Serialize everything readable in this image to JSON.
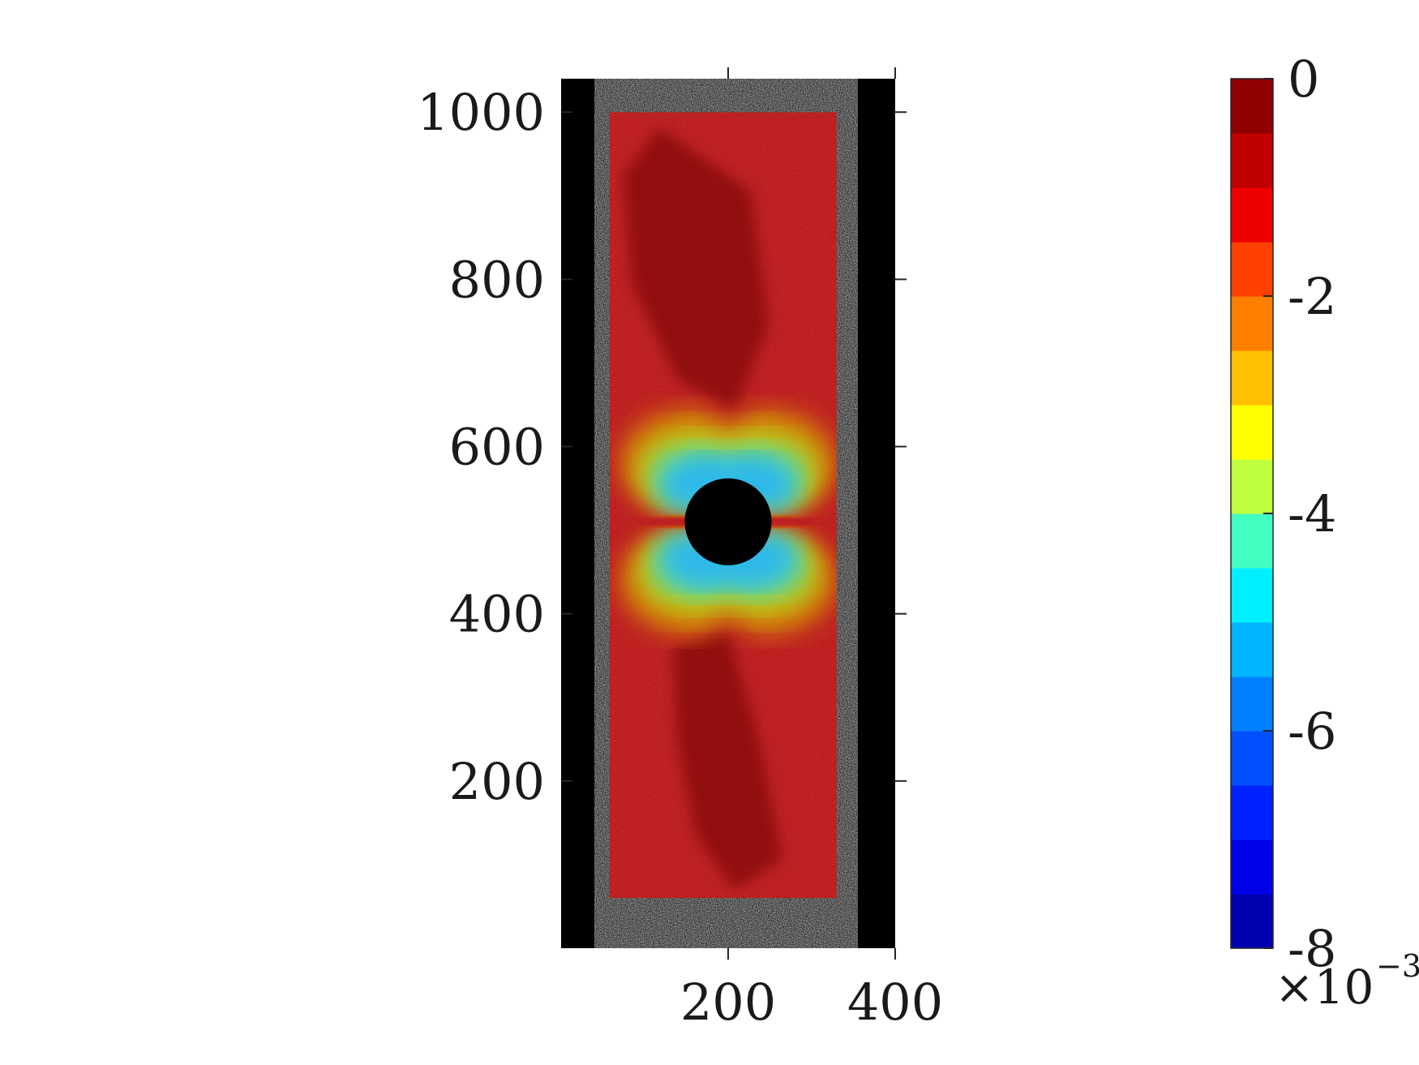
{
  "chart_data": {
    "type": "heatmap",
    "title": "",
    "xlabel": "",
    "ylabel": "",
    "xlim": [
      0,
      400
    ],
    "ylim": [
      0,
      1040
    ],
    "x_ticks": [
      200,
      400
    ],
    "y_ticks": [
      200,
      400,
      600,
      800,
      1000
    ],
    "specimen": {
      "plate_x": [
        40,
        355
      ],
      "roi_x": [
        58,
        330
      ],
      "roi_y": [
        60,
        1000
      ],
      "hole_center": [
        200,
        510
      ],
      "hole_radius": 52
    },
    "colorbar": {
      "min": -8,
      "max": 0,
      "ticks": [
        0,
        -2,
        -4,
        -6,
        -8
      ],
      "multiplier_label": "×10",
      "multiplier_exponent": "−3",
      "levels": 16,
      "colors": [
        "#0000b0",
        "#0000e8",
        "#0022ff",
        "#0050ff",
        "#0080ff",
        "#00b4ff",
        "#00f0ff",
        "#40ffc0",
        "#80ff80",
        "#c0ff40",
        "#ffff00",
        "#ffc000",
        "#ff8000",
        "#ff4000",
        "#ee0000",
        "#c00000",
        "#900000"
      ]
    }
  }
}
